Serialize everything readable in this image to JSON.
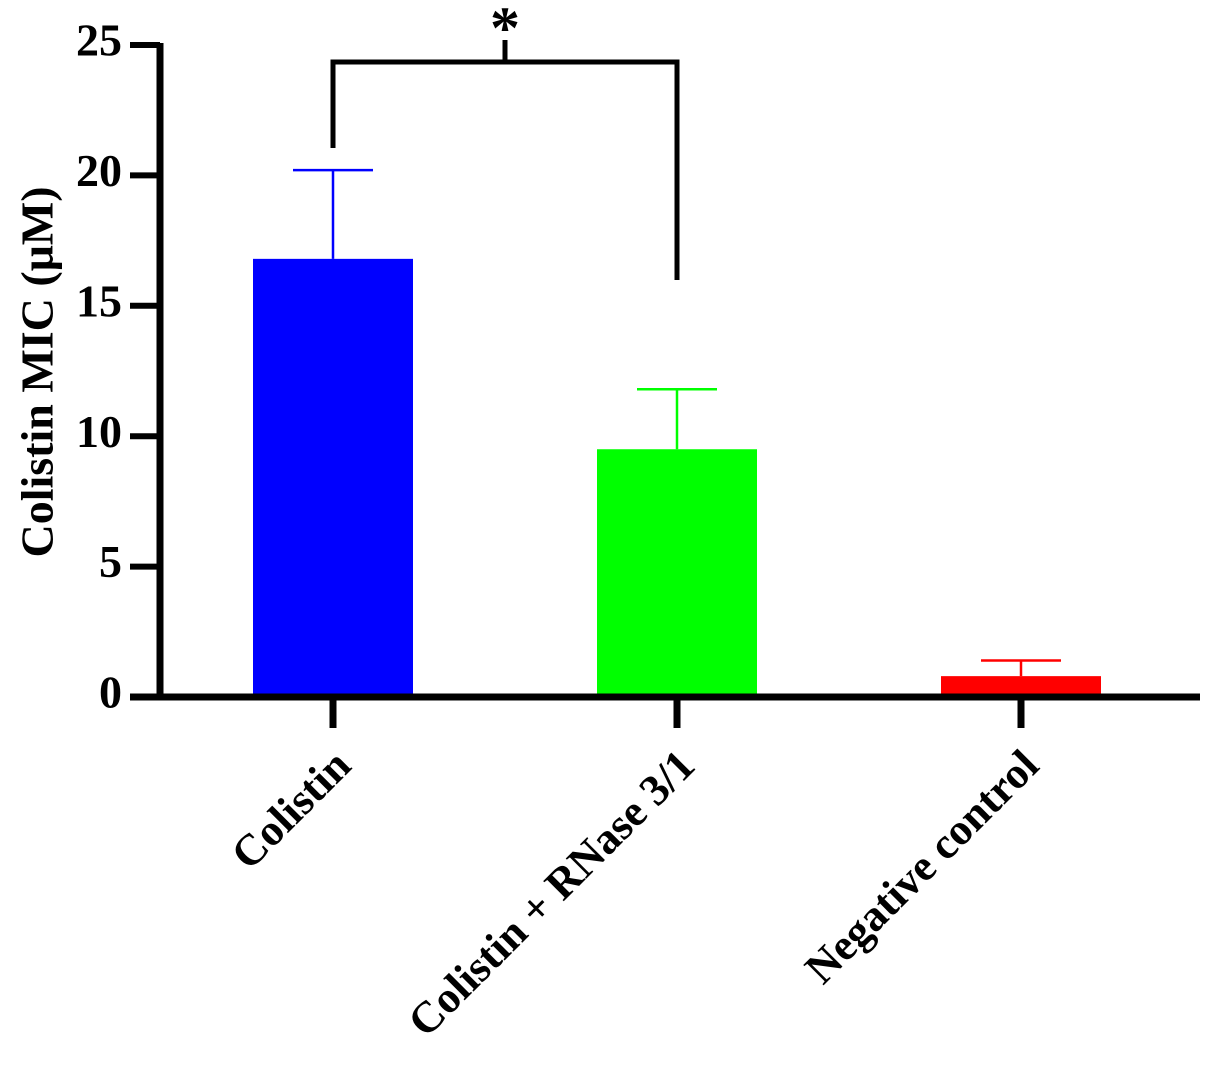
{
  "chart_data": {
    "type": "bar",
    "y_label": "Colistin MIC (μM)",
    "categories": [
      "Colistin",
      "Colistin + RNase 3/1",
      "Negative control"
    ],
    "values": [
      16.8,
      9.5,
      0.8
    ],
    "errors": [
      3.4,
      2.3,
      0.6
    ],
    "colors": [
      "#0000ff",
      "#00ff00",
      "#ff0000"
    ],
    "ylim": [
      0,
      25
    ],
    "yticks": [
      0,
      5,
      10,
      15,
      20,
      25
    ],
    "annotation": "*"
  }
}
